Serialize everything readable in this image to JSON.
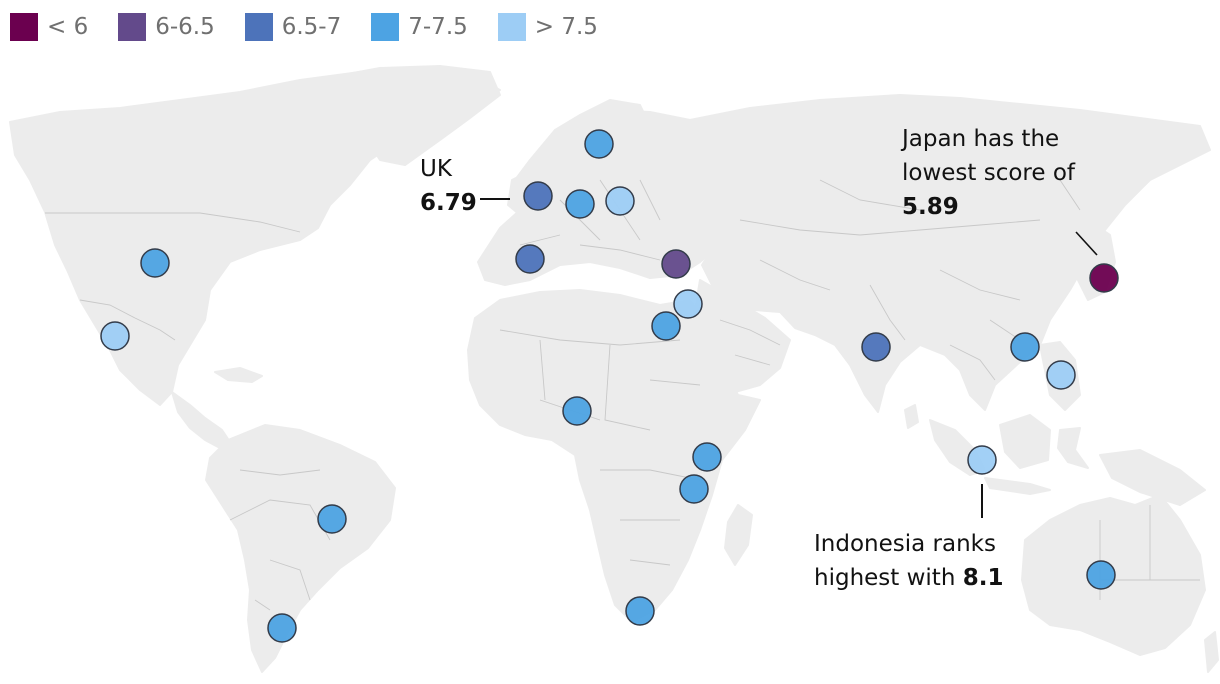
{
  "legend": [
    {
      "label": "< 6",
      "color": "#6b004f"
    },
    {
      "label": "6-6.5",
      "color": "#634a8b"
    },
    {
      "label": "6.5-7",
      "color": "#4d73ba"
    },
    {
      "label": "7-7.5",
      "color": "#4da3e3"
    },
    {
      "label": "> 7.5",
      "color": "#9dcdf5"
    }
  ],
  "annotations": {
    "uk": {
      "line1": "UK",
      "value": "6.79"
    },
    "japan": {
      "line1": "Japan has the",
      "line2": "lowest score of",
      "value": "5.89"
    },
    "indonesia": {
      "line1": "Indonesia ranks",
      "line2": "highest with",
      "value": "8.1"
    }
  },
  "dots": [
    {
      "name": "uk",
      "category": "6.5-7"
    },
    {
      "name": "france",
      "category": "7-7.5"
    },
    {
      "name": "sweden",
      "category": "7-7.5"
    },
    {
      "name": "poland",
      "category": "> 7.5"
    },
    {
      "name": "spain",
      "category": "6.5-7"
    },
    {
      "name": "turkey",
      "category": "6-6.5"
    },
    {
      "name": "lebanon-israel",
      "category": "> 7.5"
    },
    {
      "name": "egypt",
      "category": "7-7.5"
    },
    {
      "name": "nigeria",
      "category": "7-7.5"
    },
    {
      "name": "kenya",
      "category": "7-7.5"
    },
    {
      "name": "tanzania",
      "category": "7-7.5"
    },
    {
      "name": "south-africa",
      "category": "7-7.5"
    },
    {
      "name": "usa",
      "category": "7-7.5"
    },
    {
      "name": "mexico",
      "category": "> 7.5"
    },
    {
      "name": "brazil",
      "category": "7-7.5"
    },
    {
      "name": "argentina",
      "category": "7-7.5"
    },
    {
      "name": "india",
      "category": "6.5-7"
    },
    {
      "name": "china-hongkong",
      "category": "7-7.5"
    },
    {
      "name": "philippines",
      "category": "> 7.5"
    },
    {
      "name": "japan",
      "category": "< 6"
    },
    {
      "name": "indonesia",
      "category": "> 7.5"
    },
    {
      "name": "australia",
      "category": "7-7.5"
    }
  ]
}
